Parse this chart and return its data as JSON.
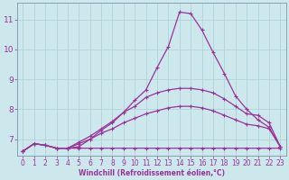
{
  "xlabel": "Windchill (Refroidissement éolien,°C)",
  "background_color": "#cce8ed",
  "line_color": "#993399",
  "grid_color": "#b0d4d8",
  "xlim": [
    -0.5,
    23.5
  ],
  "ylim": [
    6.45,
    11.55
  ],
  "yticks": [
    7,
    8,
    9,
    10,
    11
  ],
  "ytick_labels": [
    "7",
    "8",
    "9",
    "10",
    "11"
  ],
  "xticks": [
    0,
    1,
    2,
    3,
    4,
    5,
    6,
    7,
    8,
    9,
    10,
    11,
    12,
    13,
    14,
    15,
    16,
    17,
    18,
    19,
    20,
    21,
    22,
    23
  ],
  "series": [
    [
      6.6,
      6.85,
      6.8,
      6.7,
      6.7,
      6.7,
      6.7,
      6.7,
      6.7,
      6.7,
      6.7,
      6.7,
      6.7,
      6.7,
      6.7,
      6.7,
      6.7,
      6.7,
      6.7,
      6.7,
      6.7,
      6.7,
      6.7,
      6.7
    ],
    [
      6.6,
      6.85,
      6.8,
      6.7,
      6.7,
      6.85,
      7.0,
      7.2,
      7.35,
      7.55,
      7.7,
      7.85,
      7.95,
      8.05,
      8.1,
      8.1,
      8.05,
      7.95,
      7.8,
      7.65,
      7.5,
      7.45,
      7.35,
      6.75
    ],
    [
      6.6,
      6.85,
      6.8,
      6.7,
      6.7,
      6.9,
      7.1,
      7.35,
      7.6,
      7.9,
      8.1,
      8.4,
      8.55,
      8.65,
      8.7,
      8.7,
      8.65,
      8.55,
      8.35,
      8.1,
      7.85,
      7.8,
      7.55,
      6.75
    ],
    [
      6.6,
      6.85,
      6.8,
      6.7,
      6.7,
      6.75,
      7.0,
      7.3,
      7.55,
      7.9,
      8.3,
      8.65,
      9.4,
      10.1,
      11.25,
      11.2,
      10.65,
      9.9,
      9.2,
      8.45,
      8.0,
      7.65,
      7.4,
      6.75
    ]
  ]
}
